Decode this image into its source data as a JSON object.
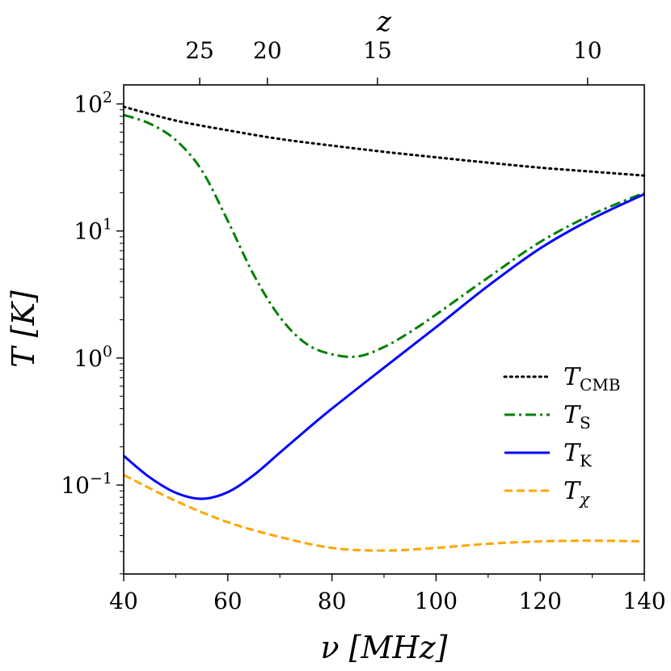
{
  "chart_data": {
    "type": "line",
    "title": "",
    "xlabel": "ν [MHz]",
    "ylabel": "T [K]",
    "top_axis_label": "z",
    "xlim": [
      40,
      140
    ],
    "ylim_log10": [
      -1.7,
      2.15
    ],
    "x_ticks": [
      40,
      60,
      80,
      100,
      120,
      140
    ],
    "y_ticks": [
      {
        "base": "10",
        "exp": "−1",
        "log": -1
      },
      {
        "base": "10",
        "exp": "0",
        "log": 0
      },
      {
        "base": "10",
        "exp": "1",
        "log": 1
      },
      {
        "base": "10",
        "exp": "2",
        "log": 2
      }
    ],
    "top_ticks": [
      {
        "label": "25",
        "nu": 54.6
      },
      {
        "label": "20",
        "nu": 67.6
      },
      {
        "label": "15",
        "nu": 88.75
      },
      {
        "label": "10",
        "nu": 129.1
      }
    ],
    "legend_position": "center-right",
    "series": [
      {
        "name": "T_CMB",
        "label_main": "T",
        "label_sub": "CMB",
        "color": "#000000",
        "dash": "dotted",
        "x": [
          40,
          50,
          60,
          70,
          80,
          90,
          100,
          110,
          120,
          130,
          140
        ],
        "y": [
          95,
          74,
          62,
          53,
          47,
          42,
          38,
          34.5,
          31.5,
          29.3,
          27.3
        ]
      },
      {
        "name": "T_S",
        "label_main": "T",
        "label_sub": "S",
        "color": "#008000",
        "dash": "dashdot",
        "x": [
          40,
          45,
          50,
          55,
          60,
          65,
          70,
          75,
          80,
          85,
          90,
          95,
          100,
          110,
          120,
          130,
          140
        ],
        "y": [
          82,
          70,
          52,
          30,
          12,
          4.5,
          2.1,
          1.3,
          1.07,
          1.03,
          1.22,
          1.6,
          2.2,
          4.3,
          8.2,
          13.5,
          20
        ]
      },
      {
        "name": "T_K",
        "label_main": "T",
        "label_sub": "K",
        "color": "#0000ff",
        "dash": "solid",
        "x": [
          40,
          45,
          50,
          55,
          60,
          65,
          70,
          75,
          80,
          90,
          100,
          110,
          120,
          130,
          140
        ],
        "y": [
          0.17,
          0.115,
          0.087,
          0.078,
          0.088,
          0.12,
          0.18,
          0.27,
          0.4,
          0.84,
          1.75,
          3.7,
          7.3,
          12.5,
          19.5
        ]
      },
      {
        "name": "T_χ",
        "label_main": "T",
        "label_sub": "χ",
        "color": "#ffa500",
        "dash": "dashed",
        "x": [
          40,
          50,
          60,
          70,
          80,
          90,
          100,
          110,
          120,
          130,
          140
        ],
        "y": [
          0.12,
          0.075,
          0.051,
          0.039,
          0.032,
          0.0305,
          0.032,
          0.0345,
          0.036,
          0.0365,
          0.036
        ]
      }
    ]
  }
}
